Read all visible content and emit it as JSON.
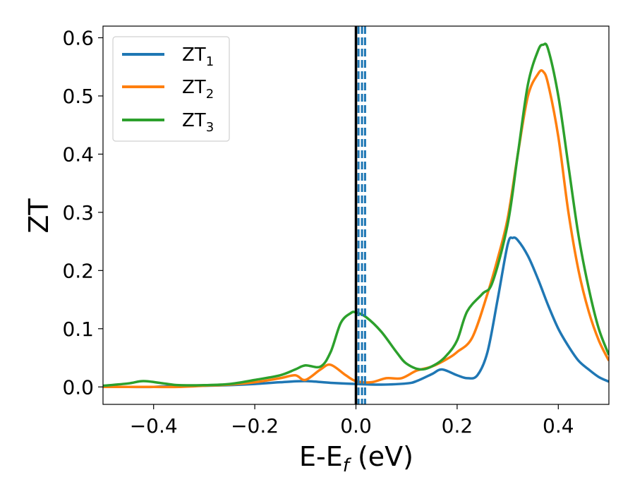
{
  "chart_data": {
    "type": "line",
    "xlabel_main": "E-E",
    "xlabel_sub": "f",
    "xlabel_unit": " (eV)",
    "ylabel": "ZT",
    "xlim": [
      -0.5,
      0.5
    ],
    "ylim": [
      -0.03,
      0.62
    ],
    "xticks": [
      -0.4,
      -0.2,
      0.0,
      0.2,
      0.4
    ],
    "xtick_labels": [
      "−0.4",
      "−0.2",
      "0.0",
      "0.2",
      "0.4"
    ],
    "yticks": [
      0.0,
      0.1,
      0.2,
      0.3,
      0.4,
      0.5,
      0.6
    ],
    "ytick_labels": [
      "0.0",
      "0.1",
      "0.2",
      "0.3",
      "0.4",
      "0.5",
      "0.6"
    ],
    "grid": false,
    "legend_position": "top-left",
    "vlines": [
      {
        "x": 0.0,
        "color": "#000000",
        "style": "solid"
      },
      {
        "x": 0.005,
        "color": "#1f77b4",
        "style": "dashed"
      },
      {
        "x": 0.012,
        "color": "#1f77b4",
        "style": "dashed"
      },
      {
        "x": 0.018,
        "color": "#1f77b4",
        "style": "dashed"
      }
    ],
    "series": [
      {
        "name": "ZT",
        "subscript": "1",
        "color": "#1f77b4",
        "x": [
          -0.5,
          -0.45,
          -0.4,
          -0.35,
          -0.3,
          -0.25,
          -0.2,
          -0.15,
          -0.1,
          -0.05,
          0.0,
          0.05,
          0.1,
          0.12,
          0.15,
          0.17,
          0.2,
          0.22,
          0.24,
          0.26,
          0.28,
          0.3,
          0.31,
          0.32,
          0.34,
          0.36,
          0.38,
          0.4,
          0.42,
          0.44,
          0.46,
          0.48,
          0.5
        ],
        "y": [
          0.0,
          0.0,
          0.0,
          0.002,
          0.002,
          0.003,
          0.005,
          0.008,
          0.01,
          0.007,
          0.005,
          0.004,
          0.006,
          0.01,
          0.022,
          0.03,
          0.02,
          0.015,
          0.02,
          0.06,
          0.15,
          0.245,
          0.256,
          0.252,
          0.225,
          0.185,
          0.14,
          0.1,
          0.07,
          0.045,
          0.03,
          0.017,
          0.009
        ]
      },
      {
        "name": "ZT",
        "subscript": "2",
        "color": "#ff7f0e",
        "x": [
          -0.5,
          -0.45,
          -0.4,
          -0.35,
          -0.3,
          -0.25,
          -0.2,
          -0.15,
          -0.12,
          -0.1,
          -0.07,
          -0.05,
          -0.02,
          0.0,
          0.03,
          0.06,
          0.09,
          0.12,
          0.15,
          0.18,
          0.2,
          0.23,
          0.26,
          0.28,
          0.3,
          0.32,
          0.34,
          0.36,
          0.37,
          0.38,
          0.4,
          0.42,
          0.44,
          0.46,
          0.48,
          0.5
        ],
        "y": [
          0.0,
          0.0,
          0.0,
          0.0,
          0.002,
          0.004,
          0.008,
          0.015,
          0.02,
          0.012,
          0.03,
          0.038,
          0.02,
          0.01,
          0.008,
          0.015,
          0.015,
          0.028,
          0.035,
          0.048,
          0.06,
          0.085,
          0.16,
          0.22,
          0.29,
          0.4,
          0.5,
          0.538,
          0.542,
          0.52,
          0.43,
          0.3,
          0.2,
          0.13,
          0.08,
          0.045
        ]
      },
      {
        "name": "ZT",
        "subscript": "3",
        "color": "#2ca02c",
        "x": [
          -0.5,
          -0.45,
          -0.42,
          -0.38,
          -0.35,
          -0.3,
          -0.25,
          -0.2,
          -0.15,
          -0.12,
          -0.1,
          -0.07,
          -0.05,
          -0.03,
          -0.01,
          0.0,
          0.02,
          0.05,
          0.08,
          0.1,
          0.13,
          0.16,
          0.18,
          0.2,
          0.22,
          0.25,
          0.27,
          0.3,
          0.32,
          0.34,
          0.36,
          0.37,
          0.38,
          0.4,
          0.42,
          0.44,
          0.46,
          0.48,
          0.5
        ],
        "y": [
          0.002,
          0.006,
          0.01,
          0.006,
          0.003,
          0.003,
          0.005,
          0.012,
          0.02,
          0.03,
          0.037,
          0.035,
          0.06,
          0.11,
          0.127,
          0.128,
          0.12,
          0.095,
          0.06,
          0.04,
          0.03,
          0.04,
          0.055,
          0.08,
          0.13,
          0.16,
          0.18,
          0.28,
          0.4,
          0.52,
          0.578,
          0.588,
          0.58,
          0.5,
          0.38,
          0.26,
          0.17,
          0.1,
          0.055
        ]
      }
    ]
  }
}
